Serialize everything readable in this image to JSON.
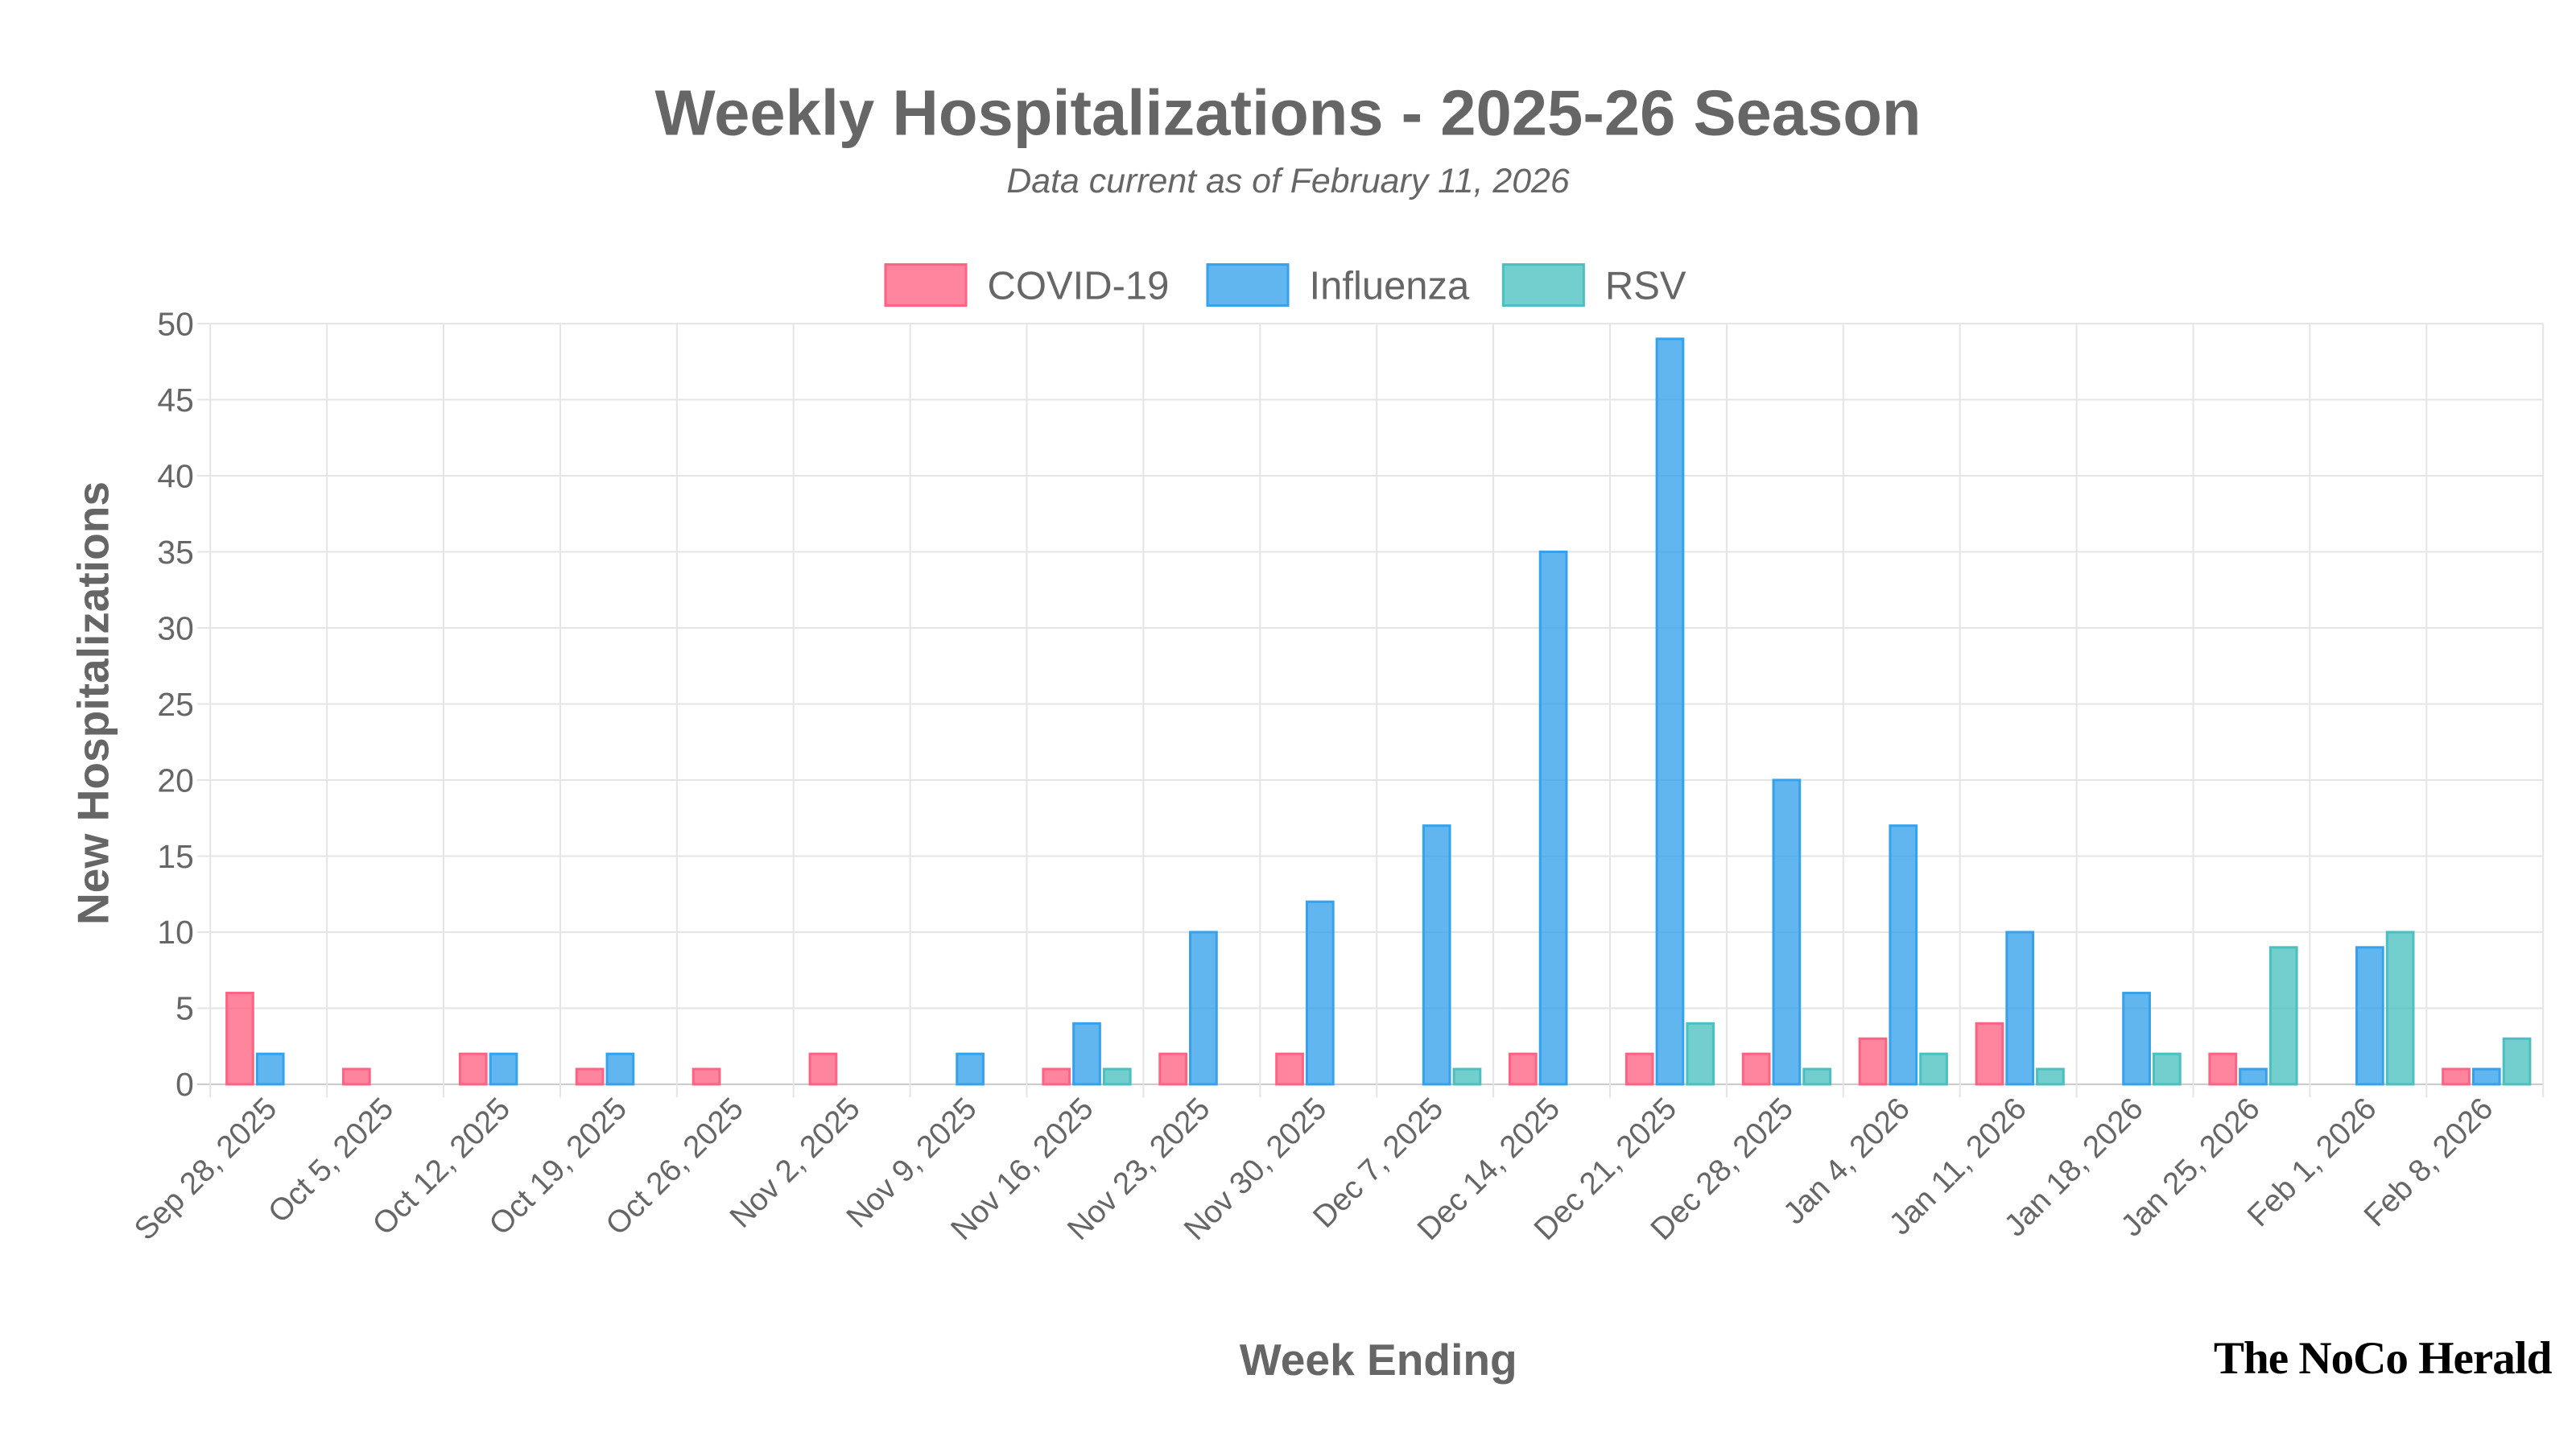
{
  "chart_data": {
    "type": "bar",
    "title": "Weekly Hospitalizations - 2025-26 Season",
    "subtitle": "Data current as of February 11, 2026",
    "xlabel": "Week Ending",
    "ylabel": "New Hospitalizations",
    "ylim": [
      0,
      50
    ],
    "yticks": [
      "0",
      "5",
      "10",
      "15",
      "20",
      "25",
      "30",
      "35",
      "40",
      "45",
      "50"
    ],
    "grid": true,
    "legend_position": "top",
    "categories": [
      "Sep 28, 2025",
      "Oct 5, 2025",
      "Oct 12, 2025",
      "Oct 19, 2025",
      "Oct 26, 2025",
      "Nov 2, 2025",
      "Nov 9, 2025",
      "Nov 16, 2025",
      "Nov 23, 2025",
      "Nov 30, 2025",
      "Dec 7, 2025",
      "Dec 14, 2025",
      "Dec 21, 2025",
      "Dec 28, 2025",
      "Jan 4, 2026",
      "Jan 11, 2026",
      "Jan 18, 2026",
      "Jan 25, 2026",
      "Feb 1, 2026",
      "Feb 8, 2026"
    ],
    "series": [
      {
        "name": "COVID-19",
        "color": "#ff6384",
        "values": [
          6,
          1,
          2,
          1,
          1,
          2,
          0,
          1,
          2,
          2,
          0,
          2,
          2,
          2,
          3,
          4,
          0,
          2,
          0,
          1
        ]
      },
      {
        "name": "Influenza",
        "color": "#36a2eb",
        "values": [
          2,
          0,
          2,
          2,
          0,
          0,
          2,
          4,
          10,
          12,
          17,
          35,
          49,
          20,
          17,
          10,
          6,
          1,
          9,
          1
        ]
      },
      {
        "name": "RSV",
        "color": "#4bc0c0",
        "values": [
          0,
          0,
          0,
          0,
          0,
          0,
          0,
          1,
          0,
          0,
          1,
          0,
          4,
          1,
          2,
          1,
          2,
          9,
          10,
          3
        ]
      }
    ]
  },
  "watermark": "The NoCo Herald"
}
